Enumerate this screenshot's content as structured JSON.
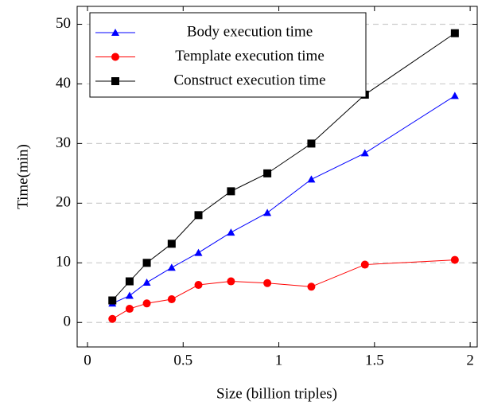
{
  "chart_data": {
    "type": "line",
    "x_label": "Size (billion triples)",
    "y_label": "Time(min)",
    "x": [
      0.13,
      0.22,
      0.31,
      0.44,
      0.58,
      0.75,
      0.94,
      1.17,
      1.45,
      1.92
    ],
    "series": [
      {
        "name": "Body execution time",
        "color": "#0000ff",
        "marker": "triangle",
        "values": [
          3.2,
          4.5,
          6.7,
          9.2,
          11.7,
          15.1,
          18.4,
          24,
          28.4,
          38
        ]
      },
      {
        "name": "Template execution time",
        "color": "#ff0000",
        "marker": "circle",
        "values": [
          0.6,
          2.3,
          3.2,
          3.9,
          6.3,
          6.9,
          6.6,
          6,
          9.7,
          10.5
        ]
      },
      {
        "name": "Construct execution time",
        "color": "#000000",
        "marker": "square",
        "values": [
          3.7,
          6.9,
          10,
          13.2,
          18,
          22,
          25,
          30,
          38.2,
          48.5
        ]
      }
    ],
    "xlim": [
      -0.054,
      2.037
    ],
    "ylim": [
      -4.1,
      53
    ],
    "xticks": [
      0,
      0.5,
      1,
      1.5,
      2
    ],
    "yticks": [
      0,
      10,
      20,
      30,
      40,
      50
    ],
    "grid": true,
    "legend": "upper left"
  }
}
